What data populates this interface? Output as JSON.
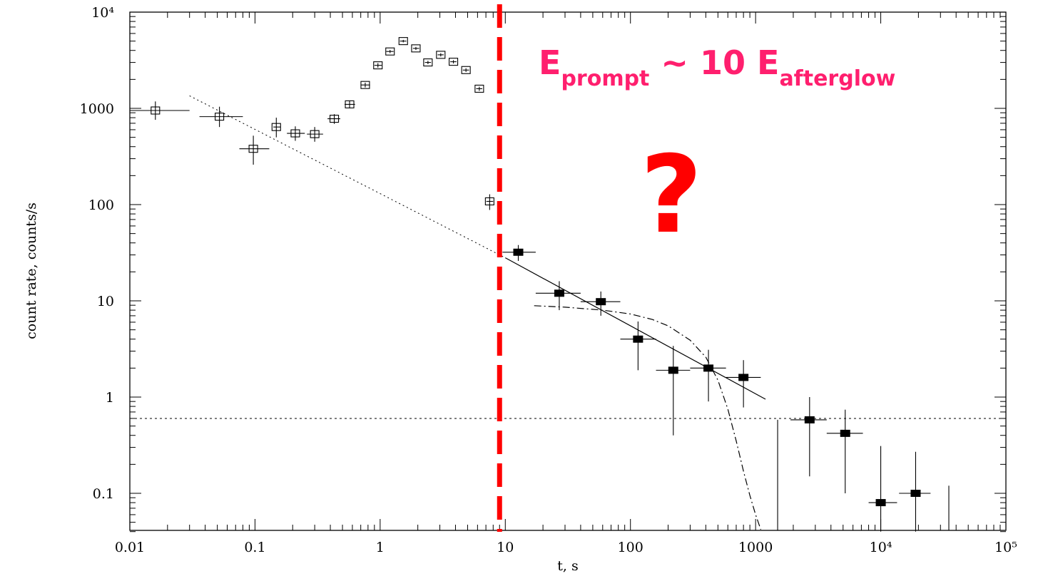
{
  "chart_data": {
    "type": "scatter",
    "xlabel": "t, s",
    "ylabel": "count rate, counts/s",
    "x_scale": "log",
    "y_scale": "log",
    "xlim": [
      0.01,
      100000
    ],
    "ylim": [
      0.04,
      10000
    ],
    "x_tick_labels": [
      "0.01",
      "0.1",
      "1",
      "10",
      "100",
      "1000",
      "10⁴",
      "10⁵"
    ],
    "y_tick_labels": [
      "0.1",
      "1",
      "10",
      "100",
      "1000",
      "10⁴"
    ],
    "series": [
      {
        "marker": "open-square",
        "points": [
          {
            "x": 0.016,
            "y": 950,
            "xlo": 0.01,
            "xhi": 0.03,
            "ylo": 760,
            "yhi": 1180
          },
          {
            "x": 0.052,
            "y": 820,
            "xlo": 0.036,
            "xhi": 0.08,
            "ylo": 640,
            "yhi": 1040
          },
          {
            "x": 0.097,
            "y": 380,
            "xlo": 0.075,
            "xhi": 0.13,
            "ylo": 260,
            "yhi": 520
          },
          {
            "x": 0.148,
            "y": 640,
            "xlo": 0.14,
            "xhi": 0.16,
            "ylo": 500,
            "yhi": 800
          },
          {
            "x": 0.21,
            "y": 550,
            "xlo": 0.18,
            "xhi": 0.25,
            "ylo": 460,
            "yhi": 650
          },
          {
            "x": 0.3,
            "y": 540,
            "xlo": 0.26,
            "xhi": 0.35,
            "ylo": 450,
            "yhi": 640
          },
          {
            "x": 0.43,
            "y": 780,
            "xlo": 0.38,
            "xhi": 0.48,
            "ylo": 690,
            "yhi": 870
          },
          {
            "x": 0.57,
            "y": 1100,
            "xlo": 0.52,
            "xhi": 0.63,
            "ylo": 1000,
            "yhi": 1200
          },
          {
            "x": 0.76,
            "y": 1750,
            "xlo": 0.7,
            "xhi": 0.83,
            "ylo": 1650,
            "yhi": 1850
          },
          {
            "x": 0.96,
            "y": 2800,
            "xlo": 0.9,
            "xhi": 1.03,
            "ylo": 2650,
            "yhi": 2950
          },
          {
            "x": 1.2,
            "y": 3900,
            "xlo": 1.12,
            "xhi": 1.28,
            "ylo": 3750,
            "yhi": 4050
          },
          {
            "x": 1.53,
            "y": 5000,
            "xlo": 1.44,
            "xhi": 1.62,
            "ylo": 4850,
            "yhi": 5150
          },
          {
            "x": 1.93,
            "y": 4200,
            "xlo": 1.83,
            "xhi": 2.05,
            "ylo": 4050,
            "yhi": 4350
          },
          {
            "x": 2.41,
            "y": 3000,
            "xlo": 2.28,
            "xhi": 2.55,
            "ylo": 2880,
            "yhi": 3120
          },
          {
            "x": 3.05,
            "y": 3600,
            "xlo": 2.88,
            "xhi": 3.22,
            "ylo": 3460,
            "yhi": 3740
          },
          {
            "x": 3.85,
            "y": 3050,
            "xlo": 3.63,
            "xhi": 4.08,
            "ylo": 2930,
            "yhi": 3170
          },
          {
            "x": 4.85,
            "y": 2500,
            "xlo": 4.58,
            "xhi": 5.13,
            "ylo": 2390,
            "yhi": 2610
          },
          {
            "x": 6.2,
            "y": 1600,
            "xlo": 5.85,
            "xhi": 6.55,
            "ylo": 1520,
            "yhi": 1680
          },
          {
            "x": 7.5,
            "y": 108,
            "xlo": 7.05,
            "xhi": 8.0,
            "ylo": 88,
            "yhi": 128
          }
        ]
      },
      {
        "marker": "filled-square",
        "points": [
          {
            "x": 12.7,
            "y": 32,
            "xlo": 9.5,
            "xhi": 17.5,
            "ylo": 26,
            "yhi": 38
          },
          {
            "x": 27,
            "y": 12,
            "xlo": 17.5,
            "xhi": 40,
            "ylo": 8,
            "yhi": 16
          },
          {
            "x": 58,
            "y": 9.8,
            "xlo": 40,
            "xhi": 83,
            "ylo": 7,
            "yhi": 12.5
          },
          {
            "x": 115,
            "y": 4,
            "xlo": 83,
            "xhi": 160,
            "ylo": 1.9,
            "yhi": 6.1
          },
          {
            "x": 220,
            "y": 1.9,
            "xlo": 160,
            "xhi": 300,
            "ylo": 0.4,
            "yhi": 3.4
          },
          {
            "x": 420,
            "y": 2,
            "xlo": 300,
            "xhi": 580,
            "ylo": 0.9,
            "yhi": 3.1
          },
          {
            "x": 800,
            "y": 1.6,
            "xlo": 580,
            "xhi": 1100,
            "ylo": 0.78,
            "yhi": 2.42
          },
          {
            "x": 2700,
            "y": 0.58,
            "xlo": 1900,
            "xhi": 3700,
            "ylo": 0.15,
            "yhi": 1.0
          },
          {
            "x": 5200,
            "y": 0.42,
            "xlo": 3700,
            "xhi": 7200,
            "ylo": 0.1,
            "yhi": 0.74
          },
          {
            "x": 10000,
            "y": 0.08,
            "xlo": 8000,
            "xhi": 13500,
            "ylo": 0.04,
            "yhi": 0.31
          },
          {
            "x": 19000,
            "y": 0.1,
            "xlo": 14000,
            "xhi": 25000,
            "ylo": 0.04,
            "yhi": 0.27
          }
        ]
      }
    ],
    "upper_limits": [
      {
        "x": 1500,
        "ymin": 0.04,
        "ymax": 0.58
      },
      {
        "x": 35000,
        "ymin": 0.04,
        "ymax": 0.12
      }
    ],
    "model_lines": {
      "dotted_powerlaw": {
        "x0": 0.03,
        "y0": 1350,
        "x1": 10,
        "y1": 28
      },
      "solid_powerlaw": {
        "x0": 10,
        "y0": 28,
        "x1": 1200,
        "y1": 0.95
      },
      "dash_dot": [
        [
          17,
          8.9
        ],
        [
          30,
          8.6
        ],
        [
          60,
          8
        ],
        [
          100,
          7.3
        ],
        [
          150,
          6.4
        ],
        [
          200,
          5.5
        ],
        [
          300,
          3.9
        ],
        [
          400,
          2.6
        ],
        [
          500,
          1.5
        ],
        [
          600,
          0.75
        ],
        [
          700,
          0.35
        ],
        [
          800,
          0.17
        ],
        [
          900,
          0.095
        ],
        [
          1000,
          0.06
        ],
        [
          1100,
          0.042
        ]
      ],
      "background_level": 0.6
    },
    "vertical_marker_x": 9,
    "annotations": {
      "energy_E1": "E",
      "energy_sub1": "prompt",
      "energy_mid": " ~ 10 E",
      "energy_sub2": "afterglow",
      "question": "?"
    },
    "colors": {
      "marker_line": "#ff0000",
      "annotation": "#ff1f6e",
      "question": "#ff0000",
      "axes": "#000000"
    }
  }
}
